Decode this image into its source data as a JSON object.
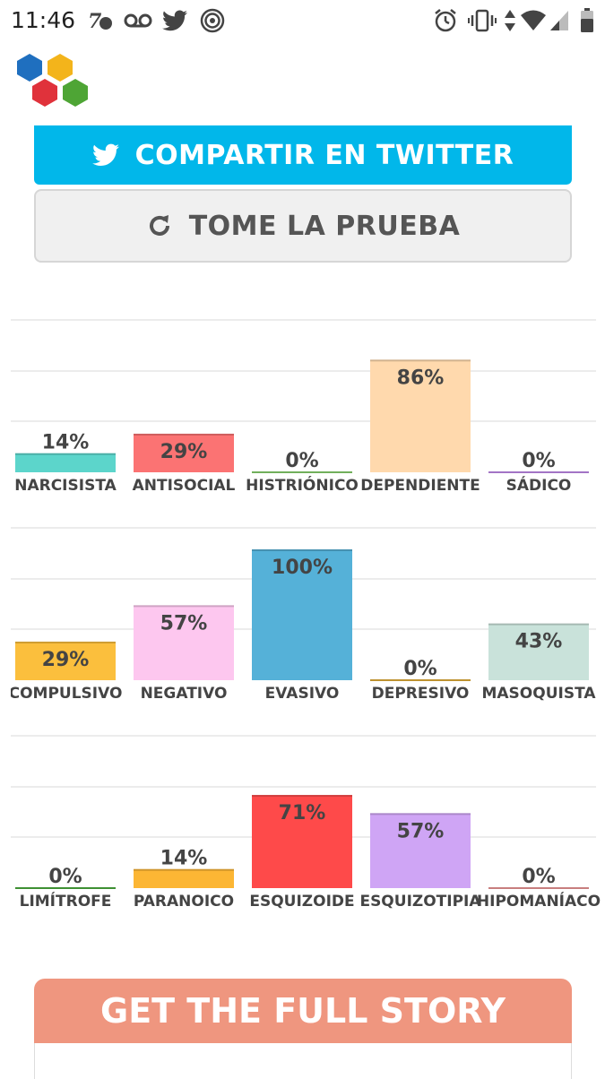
{
  "status_bar": {
    "time": "11:46",
    "left_icons": [
      "text-number-icon",
      "voicemail-icon",
      "twitter-icon",
      "lastpass-icon"
    ],
    "right_icons": [
      "alarm-icon",
      "vibrate-icon",
      "data-arrows-icon",
      "wifi-icon",
      "signal-icon",
      "battery-icon"
    ]
  },
  "buttons": {
    "twitter_label": "COMPARTIR EN TWITTER",
    "retake_label": "TOME LA PRUEBA"
  },
  "chart_data": [
    {
      "type": "bar",
      "categories": [
        "NARCISISTA",
        "ANTISOCIAL",
        "HISTRIÓNICO",
        "DEPENDIENTE",
        "SÁDICO"
      ],
      "values": [
        14,
        29,
        0,
        86,
        0
      ],
      "value_labels": [
        "14%",
        "29%",
        "0%",
        "86%",
        "0%"
      ],
      "colors": [
        "#5cd5cb",
        "#fb7373",
        "#8ad66f",
        "#ffd9ad",
        "#c78ef0"
      ],
      "ylim": [
        0,
        100
      ]
    },
    {
      "type": "bar",
      "categories": [
        "COMPULSIVO",
        "NEGATIVO",
        "EVASIVO",
        "DEPRESIVO",
        "MASOQUISTA"
      ],
      "values": [
        29,
        57,
        100,
        0,
        43
      ],
      "value_labels": [
        "29%",
        "57%",
        "100%",
        "0%",
        "43%"
      ],
      "colors": [
        "#fbbf3d",
        "#fdc7ef",
        "#55b1d8",
        "#e8b23a",
        "#c9e2da"
      ],
      "ylim": [
        0,
        100
      ]
    },
    {
      "type": "bar",
      "categories": [
        "LIMÍTROFE",
        "PARANOICO",
        "ESQUIZOIDE",
        "ESQUIZOTIPIA",
        "HIPOMANÍACO"
      ],
      "values": [
        0,
        14,
        71,
        57,
        0
      ],
      "value_labels": [
        "0%",
        "14%",
        "71%",
        "57%",
        "0%"
      ],
      "colors": [
        "#4caf3e",
        "#fcb634",
        "#fe4a4a",
        "#cfa5f5",
        "#f49a9a"
      ],
      "ylim": [
        0,
        100
      ]
    }
  ],
  "footer": {
    "title": "GET THE FULL STORY"
  }
}
